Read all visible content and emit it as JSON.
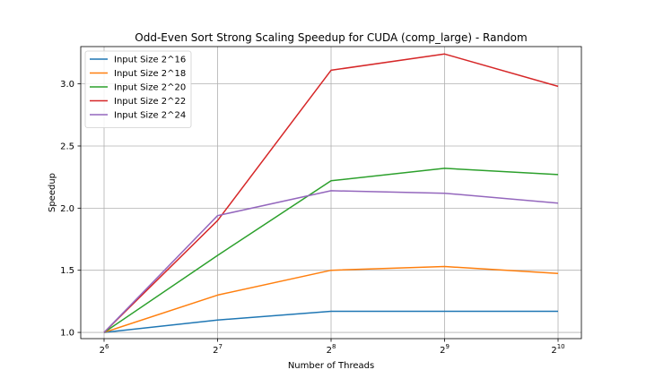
{
  "chart_data": {
    "type": "line",
    "title": "Odd-Even Sort Strong Scaling Speedup for CUDA (comp_large) - Random",
    "xlabel": "Number of Threads",
    "ylabel": "Speedup",
    "x": [
      64,
      128,
      256,
      512,
      1024
    ],
    "x_scale": "log2",
    "x_tick_labels": [
      {
        "base": "2",
        "exp": "6"
      },
      {
        "base": "2",
        "exp": "7"
      },
      {
        "base": "2",
        "exp": "8"
      },
      {
        "base": "2",
        "exp": "9"
      },
      {
        "base": "2",
        "exp": "10"
      }
    ],
    "ylim": [
      0.95,
      3.3
    ],
    "y_ticks": [
      1.0,
      1.5,
      2.0,
      2.5,
      3.0
    ],
    "y_tick_labels": [
      "1.0",
      "1.5",
      "2.0",
      "2.5",
      "3.0"
    ],
    "grid": true,
    "legend_position": "top-left",
    "series": [
      {
        "name": "Input Size 2^16",
        "color": "#1f77b4",
        "values": [
          1.0,
          1.1,
          1.17,
          1.17,
          1.17
        ]
      },
      {
        "name": "Input Size 2^18",
        "color": "#ff7f0e",
        "values": [
          1.0,
          1.3,
          1.5,
          1.53,
          1.475
        ]
      },
      {
        "name": "Input Size 2^20",
        "color": "#2ca02c",
        "values": [
          1.0,
          1.62,
          2.22,
          2.32,
          2.27
        ]
      },
      {
        "name": "Input Size 2^22",
        "color": "#d62728",
        "values": [
          1.0,
          1.9,
          3.11,
          3.24,
          2.98
        ]
      },
      {
        "name": "Input Size 2^24",
        "color": "#9467bd",
        "values": [
          1.0,
          1.94,
          2.14,
          2.12,
          2.04
        ]
      }
    ]
  }
}
